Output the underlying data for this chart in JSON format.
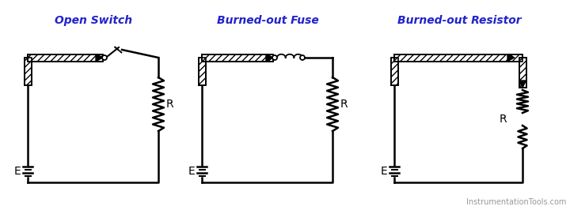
{
  "title1": "Open Switch",
  "title2": "Burned-out Fuse",
  "title3": "Burned-out Resistor",
  "title_color": "#2222CC",
  "title_fontsize": 10,
  "watermark": "InstrumentationTools.com",
  "watermark_color": "#999999",
  "watermark_fontsize": 7,
  "bg_color": "#ffffff",
  "line_color": "#000000",
  "label_fontsize": 9,
  "wire_lw": 1.8,
  "hatch_thickness": 9
}
